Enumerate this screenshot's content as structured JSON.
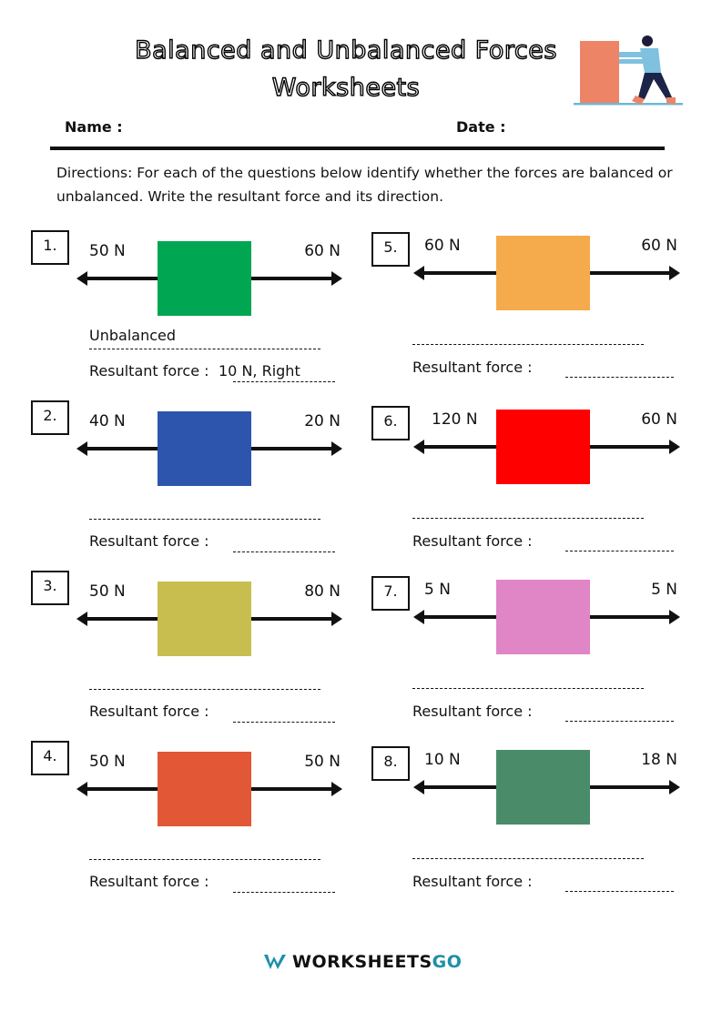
{
  "header": {
    "title_line1": "Balanced and Unbalanced Forces",
    "title_line2": "Worksheets",
    "name_label": "Name :",
    "date_label": "Date :",
    "directions": "Directions: For each of the questions below identify whether the forces are balanced or unbalanced. Write the resultant force and its direction."
  },
  "resultant_label": "Resultant force :",
  "problems": [
    {
      "number": "1.",
      "left_force": "50 N",
      "right_force": "60 N",
      "color": "#00A651",
      "status_answer": "Unbalanced",
      "resultant_answer": "10 N, Right"
    },
    {
      "number": "2.",
      "left_force": "40 N",
      "right_force": "20 N",
      "color": "#2E55AE",
      "status_answer": "",
      "resultant_answer": ""
    },
    {
      "number": "3.",
      "left_force": "50 N",
      "right_force": "80 N",
      "color": "#C8BE50",
      "status_answer": "",
      "resultant_answer": ""
    },
    {
      "number": "4.",
      "left_force": "50 N",
      "right_force": "50 N",
      "color": "#E25736",
      "status_answer": "",
      "resultant_answer": ""
    },
    {
      "number": "5.",
      "left_force": "60 N",
      "right_force": "60 N",
      "color": "#F5AB4B",
      "status_answer": "",
      "resultant_answer": ""
    },
    {
      "number": "6.",
      "left_force": "120 N",
      "right_force": "60 N",
      "color": "#FF0000",
      "status_answer": "",
      "resultant_answer": ""
    },
    {
      "number": "7.",
      "left_force": "5 N",
      "right_force": "5 N",
      "color": "#E085C6",
      "status_answer": "",
      "resultant_answer": ""
    },
    {
      "number": "8.",
      "left_force": "10 N",
      "right_force": "18 N",
      "color": "#4A8C69",
      "status_answer": "",
      "resultant_answer": ""
    }
  ],
  "footer": {
    "logo_part1": "WORKSHEETS",
    "logo_part2": "GO",
    "logo_accent": "#1E8FA8"
  }
}
